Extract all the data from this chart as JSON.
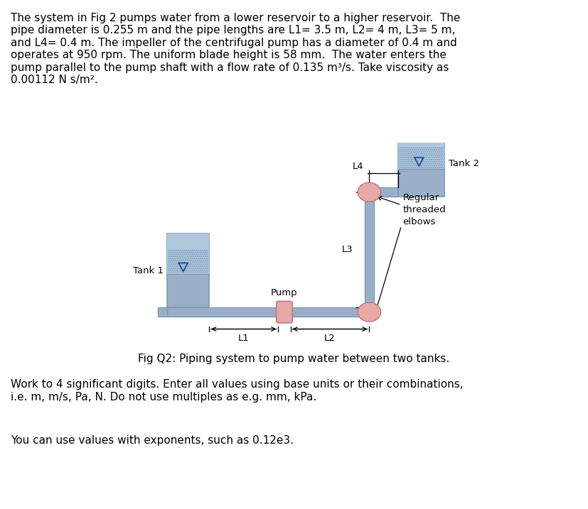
{
  "title_text": "The system in Fig 2 pumps water from a lower reservoir to a higher reservoir.  The\npipe diameter is 0.255 m and the pipe lengths are L1= 3.5 m, L2= 4 m, L3= 5 m,\nand L4= 0.4 m. The impeller of the centrifugal pump has a diameter of 0.4 m and\noperates at 950 rpm. The uniform blade height is 58 mm.  The water enters the\npump parallel to the pump shaft with a flow rate of 0.135 m³/s. Take viscosity as\n0.00112 N s/m².",
  "caption": "Fig Q2: Piping system to pump water between two tanks.",
  "bottom_text1": "Work to 4 significant digits. Enter all values using base units or their combinations,\ni.e. m, m/s, Pa, N. Do not use multiples as e.g. mm, kPa.",
  "bottom_text2": "You can use values with exponents, such as 0.12e3.",
  "pipe_color": "#9baec8",
  "pipe_edge_color": "#7a9ab8",
  "tank_color": "#9baec8",
  "tank_edge_color": "#7a9ab8",
  "water_color": "#b0c8dc",
  "elbow_color": "#e8a8a8",
  "elbow_edge_color": "#c07878",
  "pump_color": "#e8a8a8",
  "pump_edge_color": "#c07878",
  "bg_color": "#ffffff",
  "font_size": 11,
  "label_font_size": 9.5,
  "font_family": "DejaVu Sans"
}
